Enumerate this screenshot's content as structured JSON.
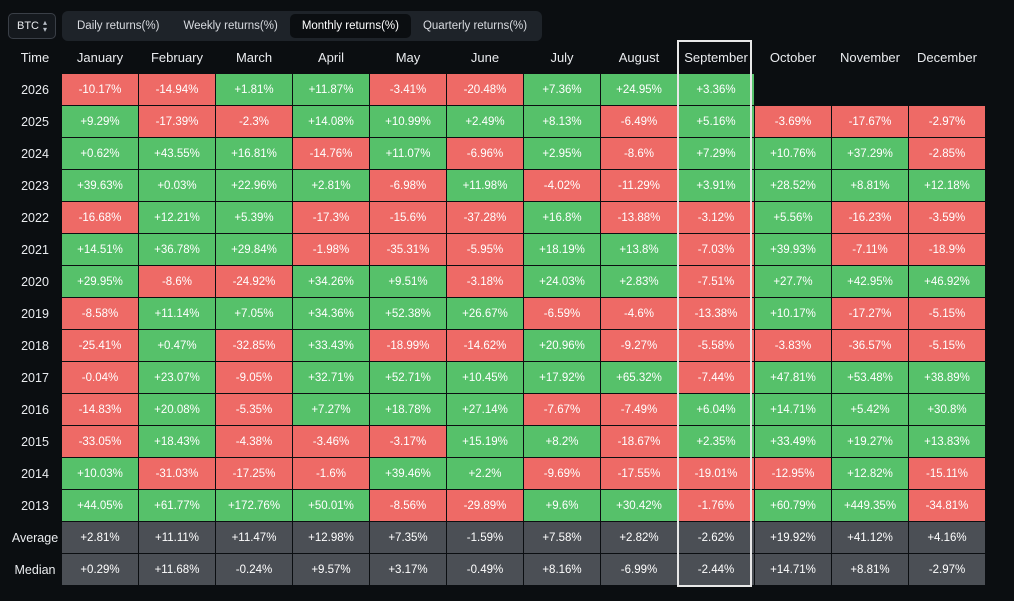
{
  "toolbar": {
    "coin": "BTC",
    "tabs": [
      "Daily returns(%)",
      "Weekly returns(%)",
      "Monthly returns(%)",
      "Quarterly returns(%)"
    ],
    "active_tab": 2
  },
  "table": {
    "time_header": "Time",
    "months": [
      "January",
      "February",
      "March",
      "April",
      "May",
      "June",
      "July",
      "August",
      "September",
      "October",
      "November",
      "December"
    ],
    "highlighted_month": "September",
    "rows": [
      {
        "label": "2026",
        "values": [
          "-10.17%",
          "-14.94%",
          "+1.81%",
          "+11.87%",
          "-3.41%",
          "-20.48%",
          "+7.36%",
          "+24.95%",
          "+3.36%",
          "",
          "",
          ""
        ]
      },
      {
        "label": "2025",
        "values": [
          "+9.29%",
          "-17.39%",
          "-2.3%",
          "+14.08%",
          "+10.99%",
          "+2.49%",
          "+8.13%",
          "-6.49%",
          "+5.16%",
          "-3.69%",
          "-17.67%",
          "-2.97%"
        ]
      },
      {
        "label": "2024",
        "values": [
          "+0.62%",
          "+43.55%",
          "+16.81%",
          "-14.76%",
          "+11.07%",
          "-6.96%",
          "+2.95%",
          "-8.6%",
          "+7.29%",
          "+10.76%",
          "+37.29%",
          "-2.85%"
        ]
      },
      {
        "label": "2023",
        "values": [
          "+39.63%",
          "+0.03%",
          "+22.96%",
          "+2.81%",
          "-6.98%",
          "+11.98%",
          "-4.02%",
          "-11.29%",
          "+3.91%",
          "+28.52%",
          "+8.81%",
          "+12.18%"
        ]
      },
      {
        "label": "2022",
        "values": [
          "-16.68%",
          "+12.21%",
          "+5.39%",
          "-17.3%",
          "-15.6%",
          "-37.28%",
          "+16.8%",
          "-13.88%",
          "-3.12%",
          "+5.56%",
          "-16.23%",
          "-3.59%"
        ]
      },
      {
        "label": "2021",
        "values": [
          "+14.51%",
          "+36.78%",
          "+29.84%",
          "-1.98%",
          "-35.31%",
          "-5.95%",
          "+18.19%",
          "+13.8%",
          "-7.03%",
          "+39.93%",
          "-7.11%",
          "-18.9%"
        ]
      },
      {
        "label": "2020",
        "values": [
          "+29.95%",
          "-8.6%",
          "-24.92%",
          "+34.26%",
          "+9.51%",
          "-3.18%",
          "+24.03%",
          "+2.83%",
          "-7.51%",
          "+27.7%",
          "+42.95%",
          "+46.92%"
        ]
      },
      {
        "label": "2019",
        "values": [
          "-8.58%",
          "+11.14%",
          "+7.05%",
          "+34.36%",
          "+52.38%",
          "+26.67%",
          "-6.59%",
          "-4.6%",
          "-13.38%",
          "+10.17%",
          "-17.27%",
          "-5.15%"
        ]
      },
      {
        "label": "2018",
        "values": [
          "-25.41%",
          "+0.47%",
          "-32.85%",
          "+33.43%",
          "-18.99%",
          "-14.62%",
          "+20.96%",
          "-9.27%",
          "-5.58%",
          "-3.83%",
          "-36.57%",
          "-5.15%"
        ]
      },
      {
        "label": "2017",
        "values": [
          "-0.04%",
          "+23.07%",
          "-9.05%",
          "+32.71%",
          "+52.71%",
          "+10.45%",
          "+17.92%",
          "+65.32%",
          "-7.44%",
          "+47.81%",
          "+53.48%",
          "+38.89%"
        ]
      },
      {
        "label": "2016",
        "values": [
          "-14.83%",
          "+20.08%",
          "-5.35%",
          "+7.27%",
          "+18.78%",
          "+27.14%",
          "-7.67%",
          "-7.49%",
          "+6.04%",
          "+14.71%",
          "+5.42%",
          "+30.8%"
        ]
      },
      {
        "label": "2015",
        "values": [
          "-33.05%",
          "+18.43%",
          "-4.38%",
          "-3.46%",
          "-3.17%",
          "+15.19%",
          "+8.2%",
          "-18.67%",
          "+2.35%",
          "+33.49%",
          "+19.27%",
          "+13.83%"
        ]
      },
      {
        "label": "2014",
        "values": [
          "+10.03%",
          "-31.03%",
          "-17.25%",
          "-1.6%",
          "+39.46%",
          "+2.2%",
          "-9.69%",
          "-17.55%",
          "-19.01%",
          "-12.95%",
          "+12.82%",
          "-15.11%"
        ]
      },
      {
        "label": "2013",
        "values": [
          "+44.05%",
          "+61.77%",
          "+172.76%",
          "+50.01%",
          "-8.56%",
          "-29.89%",
          "+9.6%",
          "+30.42%",
          "-1.76%",
          "+60.79%",
          "+449.35%",
          "-34.81%"
        ]
      }
    ],
    "summary_rows": [
      {
        "label": "Average",
        "values": [
          "+2.81%",
          "+11.11%",
          "+11.47%",
          "+12.98%",
          "+7.35%",
          "-1.59%",
          "+7.58%",
          "+2.82%",
          "-2.62%",
          "+19.92%",
          "+41.12%",
          "+4.16%"
        ]
      },
      {
        "label": "Median",
        "values": [
          "+0.29%",
          "+11.68%",
          "-0.24%",
          "+9.57%",
          "+3.17%",
          "-0.49%",
          "+8.16%",
          "-6.99%",
          "-2.44%",
          "+14.71%",
          "+8.81%",
          "-2.97%"
        ]
      }
    ]
  },
  "colors": {
    "positive": "#56c16a",
    "negative": "#ee6a66",
    "summary": "#4b4f55",
    "background": "#0b0e11"
  }
}
